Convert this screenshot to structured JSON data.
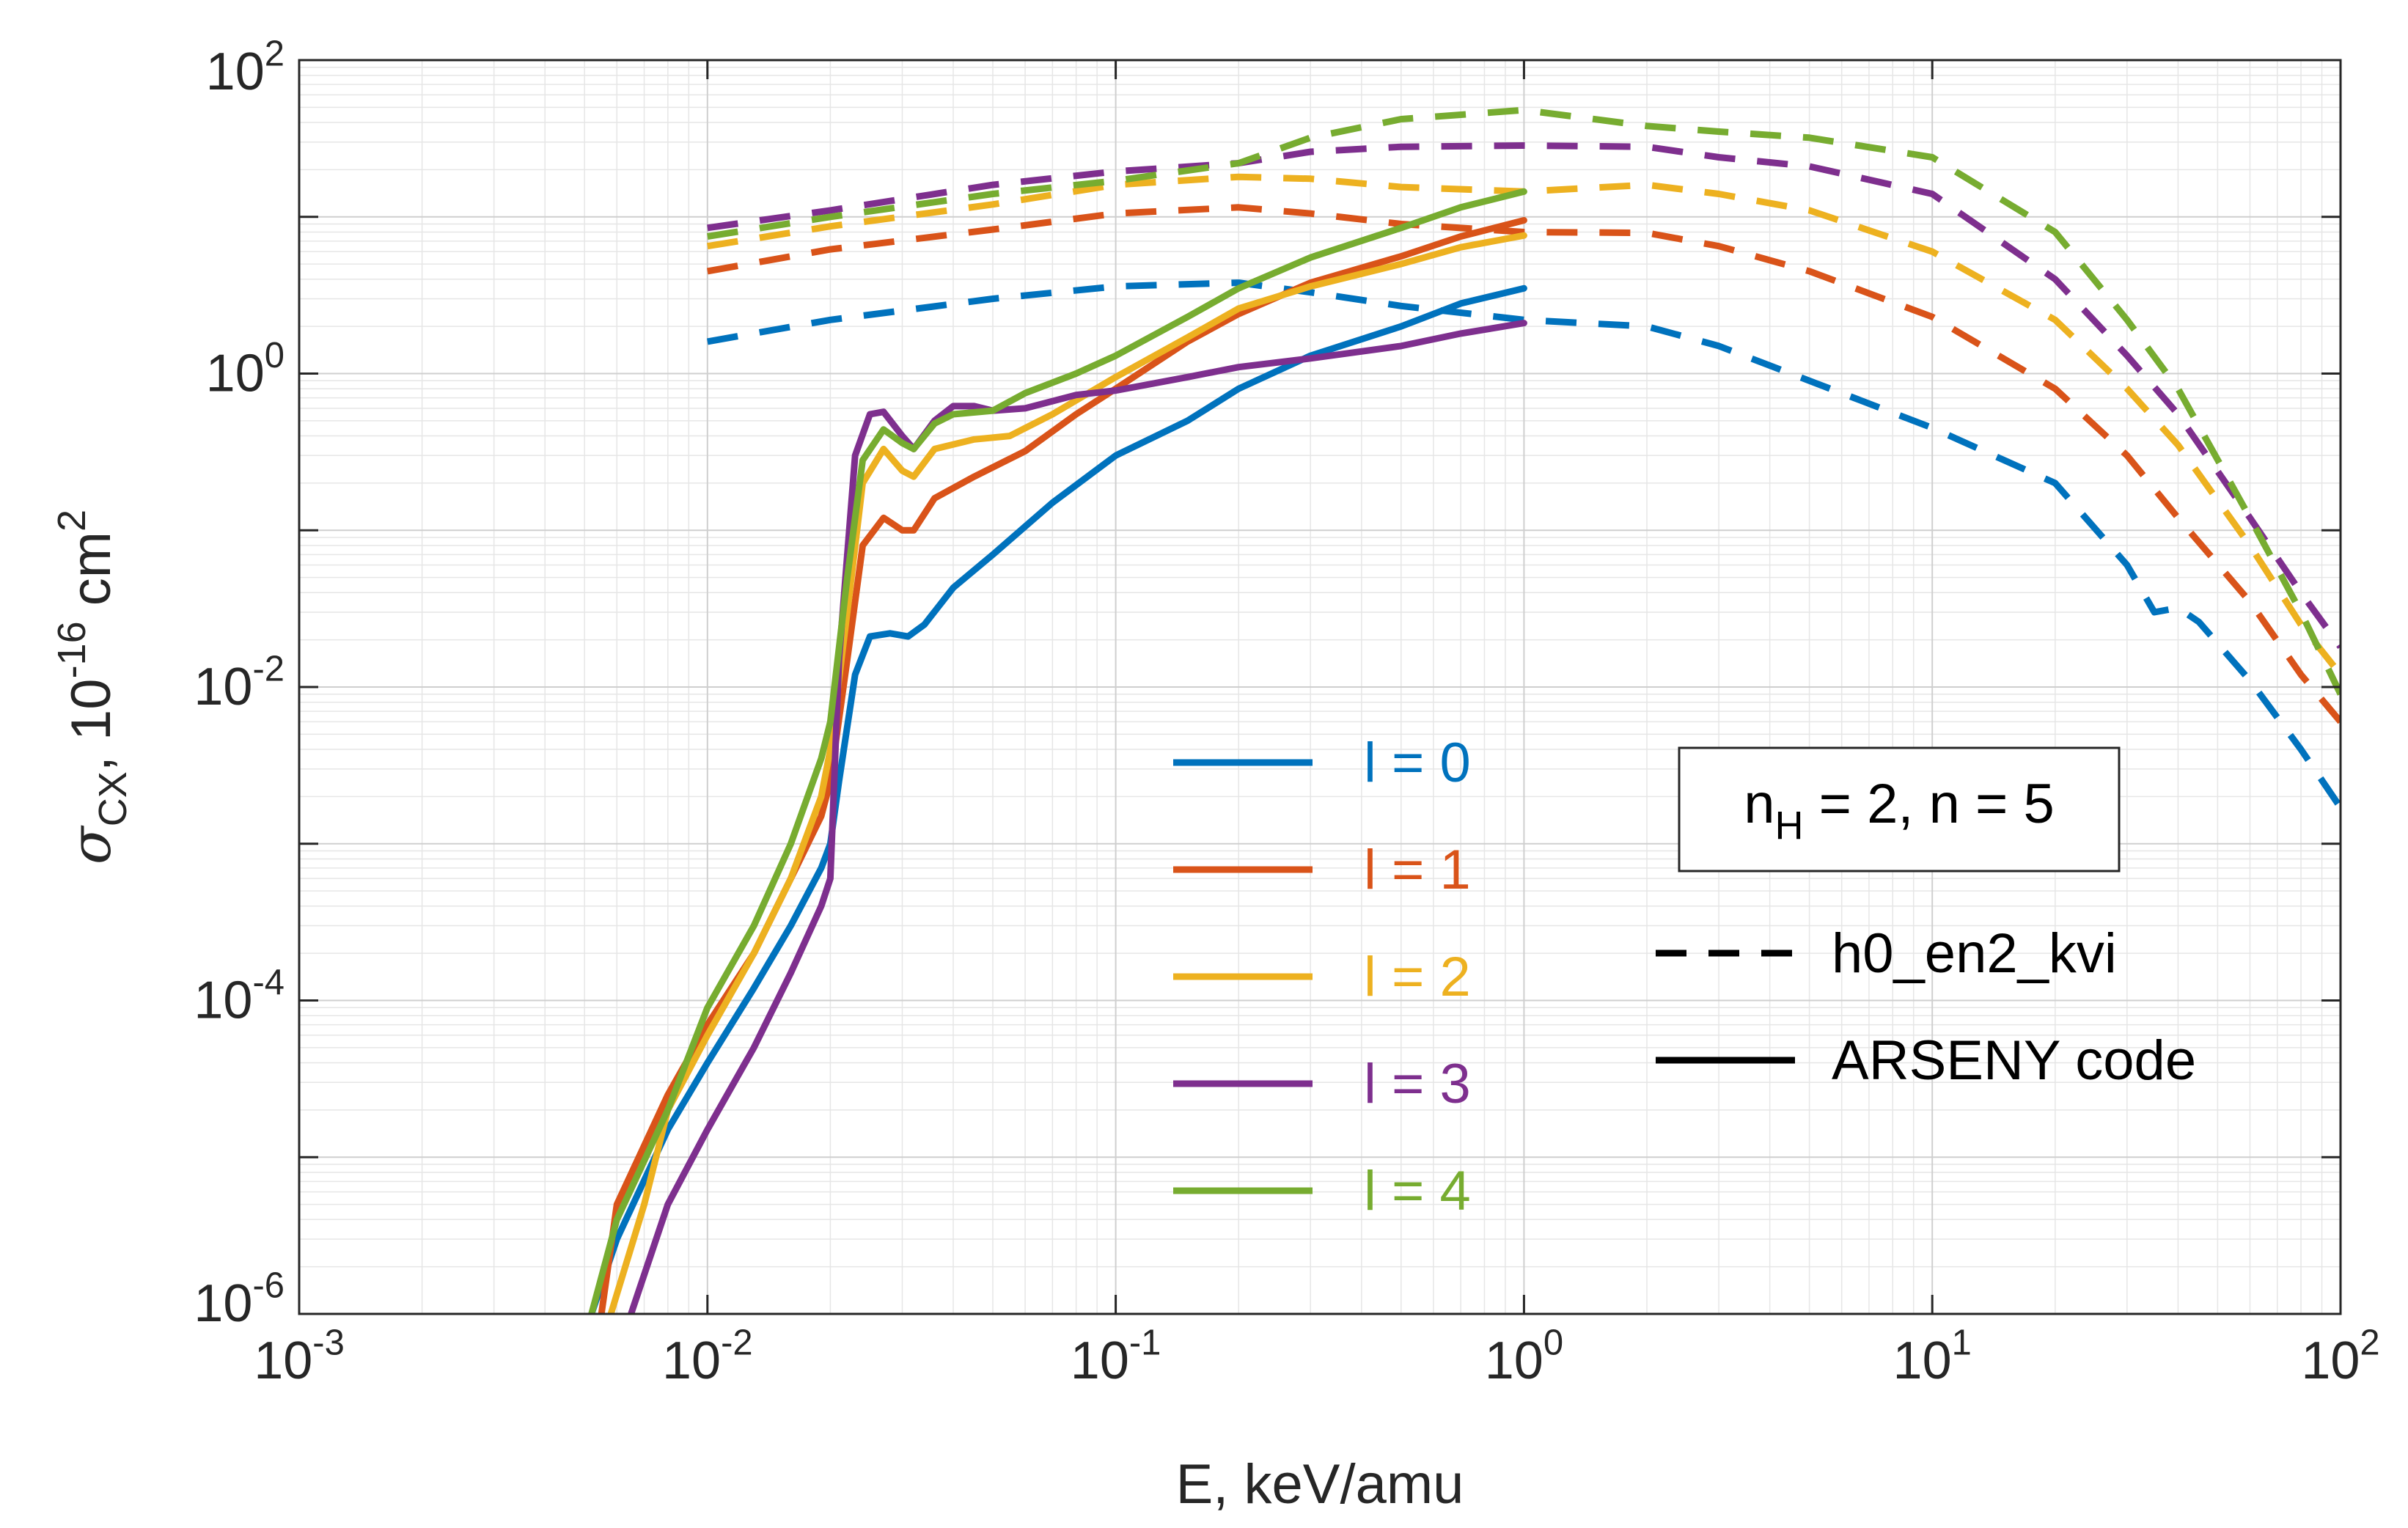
{
  "chart_data": {
    "type": "line",
    "x_scale": "log",
    "y_scale": "log",
    "xlim": [
      0.001,
      100
    ],
    "ylim": [
      1e-06,
      100
    ],
    "grid": true,
    "minor_grid": true,
    "xlabel": "E, keV/amu",
    "ylabel": {
      "base": "σ",
      "sub": "CX",
      "sep": ", ",
      "unit_a": "10",
      "unit_exp": "-16",
      "unit_b": " cm",
      "unit_exp2": "2"
    },
    "x_ticks": [
      {
        "value": 0.001,
        "base": "10",
        "exp": "-3"
      },
      {
        "value": 0.01,
        "base": "10",
        "exp": "-2"
      },
      {
        "value": 0.1,
        "base": "10",
        "exp": "-1"
      },
      {
        "value": 1,
        "base": "10",
        "exp": "0"
      },
      {
        "value": 10,
        "base": "10",
        "exp": "1"
      },
      {
        "value": 100,
        "base": "10",
        "exp": "2"
      }
    ],
    "y_ticks": [
      {
        "value": 1e-06,
        "base": "10",
        "exp": "-6"
      },
      {
        "value": 0.0001,
        "base": "10",
        "exp": "-4"
      },
      {
        "value": 0.01,
        "base": "10",
        "exp": "-2"
      },
      {
        "value": 1,
        "base": "10",
        "exp": "0"
      },
      {
        "value": 100,
        "base": "10",
        "exp": "2"
      }
    ],
    "annotation": {
      "pre": "n",
      "sub": "H",
      "post": " = 2, n = 5"
    },
    "style_legend": [
      {
        "label": "h0_en2_kvi",
        "dash": true
      },
      {
        "label": "ARSENY code",
        "dash": false
      }
    ],
    "legend_position": "center",
    "series": [
      {
        "name": "l = 0",
        "color": "#0072BD",
        "solid": [
          [
            0.0052,
            1e-06
          ],
          [
            0.006,
            3e-06
          ],
          [
            0.008,
            1.5e-05
          ],
          [
            0.01,
            4e-05
          ],
          [
            0.013,
            0.00012
          ],
          [
            0.016,
            0.0003
          ],
          [
            0.019,
            0.0007
          ],
          [
            0.02,
            0.001
          ],
          [
            0.021,
            0.0025
          ],
          [
            0.023,
            0.012
          ],
          [
            0.025,
            0.021
          ],
          [
            0.028,
            0.022
          ],
          [
            0.031,
            0.021
          ],
          [
            0.034,
            0.025
          ],
          [
            0.04,
            0.043
          ],
          [
            0.05,
            0.07
          ],
          [
            0.07,
            0.15
          ],
          [
            0.1,
            0.3
          ],
          [
            0.15,
            0.5
          ],
          [
            0.2,
            0.8
          ],
          [
            0.3,
            1.3
          ],
          [
            0.5,
            2.0
          ],
          [
            0.7,
            2.8
          ],
          [
            1.0,
            3.5
          ]
        ],
        "dashed": [
          [
            0.01,
            1.6
          ],
          [
            0.02,
            2.2
          ],
          [
            0.05,
            3.0
          ],
          [
            0.1,
            3.6
          ],
          [
            0.2,
            3.8
          ],
          [
            0.3,
            3.3
          ],
          [
            0.5,
            2.7
          ],
          [
            1.0,
            2.2
          ],
          [
            2.0,
            2.0
          ],
          [
            3.0,
            1.5
          ],
          [
            5.0,
            0.9
          ],
          [
            10,
            0.45
          ],
          [
            20,
            0.2
          ],
          [
            30,
            0.06
          ],
          [
            35,
            0.03
          ],
          [
            40,
            0.032
          ],
          [
            45,
            0.026
          ],
          [
            60,
            0.011
          ],
          [
            80,
            0.004
          ],
          [
            100,
            0.0017
          ]
        ]
      },
      {
        "name": "l = 1",
        "color": "#D95319",
        "solid": [
          [
            0.0055,
            1e-06
          ],
          [
            0.006,
            5e-06
          ],
          [
            0.008,
            2.5e-05
          ],
          [
            0.01,
            7e-05
          ],
          [
            0.013,
            0.0002
          ],
          [
            0.016,
            0.0006
          ],
          [
            0.019,
            0.0015
          ],
          [
            0.02,
            0.0025
          ],
          [
            0.022,
            0.015
          ],
          [
            0.024,
            0.08
          ],
          [
            0.027,
            0.12
          ],
          [
            0.03,
            0.1
          ],
          [
            0.032,
            0.1
          ],
          [
            0.036,
            0.16
          ],
          [
            0.045,
            0.22
          ],
          [
            0.06,
            0.32
          ],
          [
            0.08,
            0.55
          ],
          [
            0.1,
            0.8
          ],
          [
            0.15,
            1.6
          ],
          [
            0.2,
            2.4
          ],
          [
            0.3,
            3.8
          ],
          [
            0.5,
            5.6
          ],
          [
            0.7,
            7.5
          ],
          [
            1.0,
            9.5
          ]
        ],
        "dashed": [
          [
            0.01,
            4.5
          ],
          [
            0.02,
            6.2
          ],
          [
            0.05,
            8.3
          ],
          [
            0.1,
            10.5
          ],
          [
            0.2,
            11.5
          ],
          [
            0.3,
            10.5
          ],
          [
            0.5,
            9.0
          ],
          [
            1.0,
            8.0
          ],
          [
            2.0,
            7.9
          ],
          [
            3.0,
            6.5
          ],
          [
            5.0,
            4.5
          ],
          [
            10,
            2.3
          ],
          [
            20,
            0.8
          ],
          [
            30,
            0.3
          ],
          [
            40,
            0.12
          ],
          [
            60,
            0.035
          ],
          [
            80,
            0.012
          ],
          [
            100,
            0.006
          ]
        ]
      },
      {
        "name": "l = 2",
        "color": "#EDB120",
        "solid": [
          [
            0.0058,
            1e-06
          ],
          [
            0.007,
            5e-06
          ],
          [
            0.008,
            2e-05
          ],
          [
            0.01,
            6e-05
          ],
          [
            0.013,
            0.0002
          ],
          [
            0.016,
            0.0006
          ],
          [
            0.019,
            0.002
          ],
          [
            0.02,
            0.004
          ],
          [
            0.022,
            0.03
          ],
          [
            0.024,
            0.2
          ],
          [
            0.027,
            0.33
          ],
          [
            0.03,
            0.24
          ],
          [
            0.032,
            0.22
          ],
          [
            0.036,
            0.33
          ],
          [
            0.045,
            0.38
          ],
          [
            0.055,
            0.4
          ],
          [
            0.07,
            0.55
          ],
          [
            0.1,
            0.95
          ],
          [
            0.15,
            1.7
          ],
          [
            0.2,
            2.6
          ],
          [
            0.3,
            3.6
          ],
          [
            0.5,
            5.0
          ],
          [
            0.7,
            6.4
          ],
          [
            1.0,
            7.6
          ]
        ],
        "dashed": [
          [
            0.01,
            6.5
          ],
          [
            0.02,
            8.7
          ],
          [
            0.05,
            12
          ],
          [
            0.1,
            16
          ],
          [
            0.2,
            18
          ],
          [
            0.3,
            17.5
          ],
          [
            0.5,
            15.5
          ],
          [
            1.0,
            14.5
          ],
          [
            2.0,
            16
          ],
          [
            3.0,
            14
          ],
          [
            5.0,
            11
          ],
          [
            10,
            6
          ],
          [
            20,
            2.2
          ],
          [
            30,
            0.8
          ],
          [
            40,
            0.35
          ],
          [
            60,
            0.08
          ],
          [
            80,
            0.025
          ],
          [
            100,
            0.012
          ]
        ]
      },
      {
        "name": "l = 3",
        "color": "#7E2F8E",
        "solid": [
          [
            0.0065,
            1e-06
          ],
          [
            0.008,
            5e-06
          ],
          [
            0.01,
            1.5e-05
          ],
          [
            0.013,
            5e-05
          ],
          [
            0.016,
            0.00015
          ],
          [
            0.019,
            0.0004
          ],
          [
            0.02,
            0.0006
          ],
          [
            0.021,
            0.015
          ],
          [
            0.023,
            0.3
          ],
          [
            0.025,
            0.55
          ],
          [
            0.027,
            0.57
          ],
          [
            0.03,
            0.4
          ],
          [
            0.032,
            0.33
          ],
          [
            0.036,
            0.5
          ],
          [
            0.04,
            0.62
          ],
          [
            0.045,
            0.62
          ],
          [
            0.05,
            0.58
          ],
          [
            0.06,
            0.6
          ],
          [
            0.08,
            0.73
          ],
          [
            0.1,
            0.78
          ],
          [
            0.15,
            0.95
          ],
          [
            0.2,
            1.1
          ],
          [
            0.3,
            1.25
          ],
          [
            0.5,
            1.5
          ],
          [
            0.7,
            1.8
          ],
          [
            1.0,
            2.1
          ]
        ],
        "dashed": [
          [
            0.01,
            8.5
          ],
          [
            0.02,
            11
          ],
          [
            0.05,
            16
          ],
          [
            0.1,
            19.5
          ],
          [
            0.2,
            22
          ],
          [
            0.3,
            26
          ],
          [
            0.5,
            28
          ],
          [
            1.0,
            28.5
          ],
          [
            2.0,
            28
          ],
          [
            3.0,
            24
          ],
          [
            5.0,
            21
          ],
          [
            10,
            14
          ],
          [
            20,
            4
          ],
          [
            30,
            1.3
          ],
          [
            40,
            0.55
          ],
          [
            60,
            0.12
          ],
          [
            80,
            0.04
          ],
          [
            100,
            0.018
          ]
        ]
      },
      {
        "name": "l = 4",
        "color": "#77AC30",
        "solid": [
          [
            0.0052,
            1e-06
          ],
          [
            0.006,
            4e-06
          ],
          [
            0.008,
            2e-05
          ],
          [
            0.01,
            9e-05
          ],
          [
            0.013,
            0.0003
          ],
          [
            0.016,
            0.001
          ],
          [
            0.019,
            0.0035
          ],
          [
            0.02,
            0.006
          ],
          [
            0.022,
            0.05
          ],
          [
            0.024,
            0.28
          ],
          [
            0.027,
            0.44
          ],
          [
            0.03,
            0.36
          ],
          [
            0.032,
            0.33
          ],
          [
            0.036,
            0.48
          ],
          [
            0.04,
            0.55
          ],
          [
            0.05,
            0.58
          ],
          [
            0.06,
            0.75
          ],
          [
            0.08,
            1.0
          ],
          [
            0.1,
            1.3
          ],
          [
            0.15,
            2.3
          ],
          [
            0.2,
            3.5
          ],
          [
            0.3,
            5.5
          ],
          [
            0.5,
            8.5
          ],
          [
            0.7,
            11.5
          ],
          [
            1.0,
            14.5
          ]
        ],
        "dashed": [
          [
            0.01,
            7.5
          ],
          [
            0.02,
            10
          ],
          [
            0.05,
            14
          ],
          [
            0.1,
            17
          ],
          [
            0.2,
            22
          ],
          [
            0.3,
            32
          ],
          [
            0.5,
            42
          ],
          [
            1.0,
            48
          ],
          [
            2.0,
            38
          ],
          [
            3.0,
            35
          ],
          [
            5.0,
            32
          ],
          [
            10,
            24
          ],
          [
            20,
            8
          ],
          [
            30,
            2.2
          ],
          [
            40,
            0.8
          ],
          [
            60,
            0.12
          ],
          [
            80,
            0.03
          ],
          [
            100,
            0.009
          ]
        ]
      }
    ]
  }
}
